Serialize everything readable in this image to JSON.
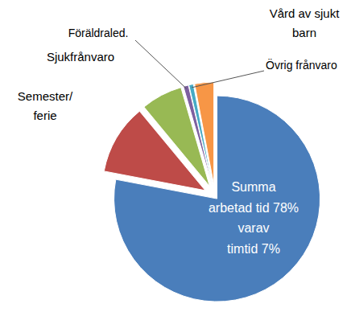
{
  "chart_data": {
    "type": "pie",
    "categories": [
      "Summa\narbetad tid 78%\nvarav\ntimtid 7%",
      "Semester/\nferie",
      "Sjukfrånvaro",
      "Föräldraled.",
      "Övrig frånvaro",
      "Vård av sjukt\nbarn"
    ],
    "values": [
      78,
      11,
      6.5,
      0.8,
      0.7,
      3
    ],
    "colors": [
      "#4a7ebb",
      "#be4b48",
      "#98b954",
      "#7d60a0",
      "#46aac5",
      "#f79646"
    ]
  }
}
